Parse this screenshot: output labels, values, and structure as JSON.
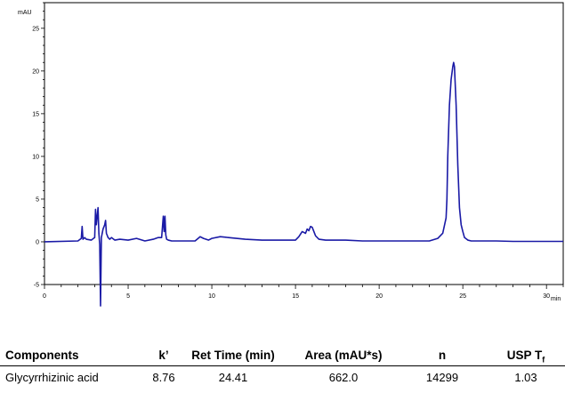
{
  "chart_data": {
    "type": "line",
    "ylabel": "mAU",
    "xlabel": "min",
    "xlim": [
      0,
      31
    ],
    "ylim": [
      -5,
      28
    ],
    "x_ticks": [
      0,
      5,
      10,
      15,
      20,
      25,
      30
    ],
    "y_ticks": [
      -5,
      0,
      5,
      10,
      15,
      20,
      25
    ],
    "grid": false,
    "color": "#1a1aa6",
    "series": [
      {
        "x": [
          0,
          2.0,
          2.2,
          2.25,
          2.3,
          2.4,
          2.5,
          2.8,
          3.0,
          3.05,
          3.1,
          3.2,
          3.25,
          3.3,
          3.35,
          3.4,
          3.5,
          3.6,
          3.65,
          3.7,
          3.8,
          3.9,
          4.0,
          4.2,
          4.5,
          5.0,
          5.5,
          6.0,
          6.5,
          6.8,
          7.0,
          7.1,
          7.15,
          7.2,
          7.25,
          7.3,
          7.4,
          7.6,
          8.0,
          9.0,
          9.3,
          9.5,
          9.8,
          10.0,
          10.5,
          11.0,
          12.0,
          13.0,
          14.0,
          15.0,
          15.2,
          15.4,
          15.6,
          15.7,
          15.8,
          15.9,
          16.0,
          16.1,
          16.2,
          16.4,
          16.8,
          17.5,
          18.0,
          19.0,
          20.0,
          21.0,
          22.0,
          23.0,
          23.5,
          23.8,
          24.0,
          24.05,
          24.1,
          24.2,
          24.3,
          24.4,
          24.45,
          24.5,
          24.6,
          24.7,
          24.8,
          24.9,
          25.0,
          25.1,
          25.3,
          25.5,
          26.0,
          27.0,
          28.0,
          29.0,
          30.0,
          31.0
        ],
        "y": [
          0,
          0.1,
          0.4,
          1.8,
          0.3,
          0.5,
          0.3,
          0.2,
          0.5,
          3.8,
          2.0,
          4.0,
          1.0,
          -0.3,
          -7.5,
          0.5,
          1.5,
          2.0,
          2.5,
          1.0,
          0.5,
          0.3,
          0.5,
          0.2,
          0.3,
          0.2,
          0.4,
          0.1,
          0.3,
          0.5,
          0.5,
          3.0,
          1.2,
          3.0,
          0.8,
          0.3,
          0.2,
          0.1,
          0.1,
          0.1,
          0.6,
          0.4,
          0.2,
          0.4,
          0.6,
          0.5,
          0.3,
          0.2,
          0.2,
          0.2,
          0.6,
          1.2,
          1.0,
          1.5,
          1.3,
          1.8,
          1.7,
          1.2,
          0.7,
          0.3,
          0.2,
          0.2,
          0.2,
          0.1,
          0.1,
          0.1,
          0.1,
          0.1,
          0.4,
          1.0,
          2.8,
          5.0,
          10.0,
          16.0,
          19.0,
          20.5,
          21.0,
          20.5,
          16.0,
          9.0,
          4.0,
          2.0,
          1.2,
          0.5,
          0.2,
          0.1,
          0.1,
          0.1,
          0.05,
          0.05,
          0.05,
          0.05
        ]
      }
    ]
  },
  "table": {
    "headers": [
      "Components",
      "k’",
      "Ret Time (min)",
      "Area (mAU*s)",
      "n",
      "USP T"
    ],
    "header_sub": "f",
    "rows": [
      [
        "Glycyrrhizinic acid",
        "8.76",
        "24.41",
        "662.0",
        "14299",
        "1.03"
      ]
    ]
  }
}
